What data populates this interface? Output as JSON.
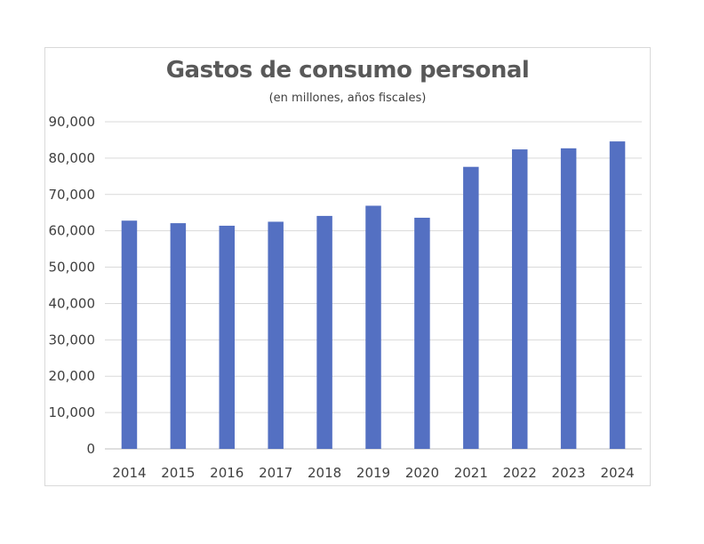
{
  "chart_data": {
    "type": "bar",
    "title": "Gastos de consumo personal",
    "subtitle": "(en millones, años fiscales)",
    "xlabel": "",
    "ylabel": "",
    "categories": [
      "2014",
      "2015",
      "2016",
      "2017",
      "2018",
      "2019",
      "2020",
      "2021",
      "2022",
      "2023",
      "2024"
    ],
    "values": [
      62800,
      62100,
      61400,
      62500,
      64100,
      66900,
      63600,
      77600,
      82400,
      82700,
      84600
    ],
    "ylim": [
      0,
      90000
    ],
    "yticks": [
      0,
      10000,
      20000,
      30000,
      40000,
      50000,
      60000,
      70000,
      80000,
      90000
    ],
    "ytick_labels": [
      "0",
      "10,000",
      "20,000",
      "30,000",
      "40,000",
      "50,000",
      "60,000",
      "70,000",
      "80,000",
      "90,000"
    ],
    "grid": true,
    "legend": "none",
    "colors": {
      "bar": "#5470c2",
      "grid": "#d9d9d9",
      "axis": "#bfbfbf",
      "title": "#595959"
    }
  }
}
